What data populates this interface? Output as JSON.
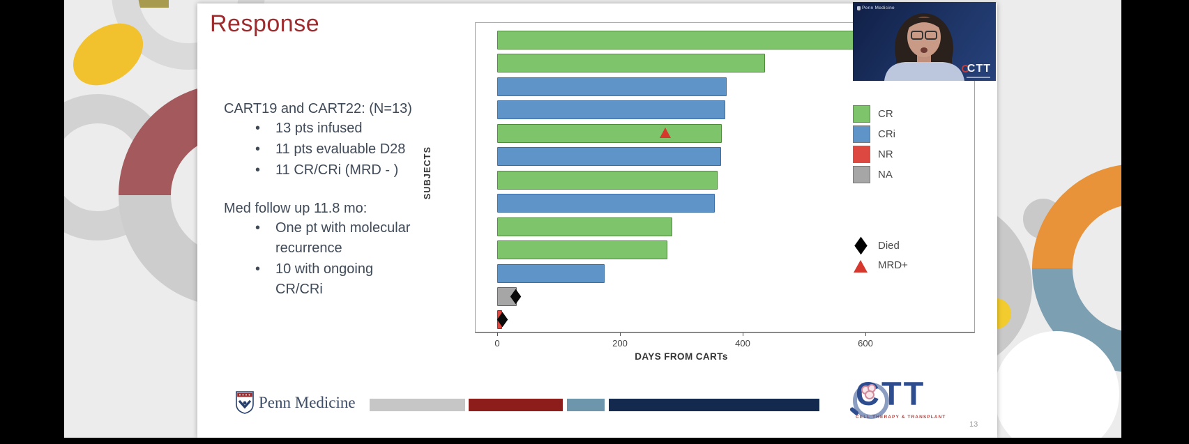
{
  "slide": {
    "title": "Response",
    "body": {
      "group1_header": "CART19 and CART22: (N=13)",
      "group1_bullets": [
        "13 pts infused",
        "11 pts evaluable D28",
        "11 CR/CRi (MRD - )"
      ],
      "group2_header": "Med follow up 11.8 mo:",
      "group2_bullets": [
        [
          "One pt with molecular",
          "recurrence"
        ],
        [
          "10 with ongoing",
          "CR/CRi"
        ]
      ],
      "bullet_glyph": "•"
    },
    "page_number": "13"
  },
  "chart_data": {
    "type": "bar",
    "orientation": "horizontal",
    "title": "",
    "xlabel": "DAYS FROM CARTs",
    "ylabel": "SUBJECTS",
    "x_ticks": [
      0,
      200,
      400,
      600
    ],
    "xlim": [
      0,
      780
    ],
    "grid": false,
    "legend_position": "right",
    "legend": [
      {
        "label": "CR",
        "color": "#7ec46b",
        "edge": "#4e8a3c"
      },
      {
        "label": "CRi",
        "color": "#5f94c9",
        "edge": "#3c6ea6"
      },
      {
        "label": "NR",
        "color": "#dd4840",
        "edge": "#9e2a20"
      },
      {
        "label": "NA",
        "color": "#a6a6a6",
        "edge": "#666666"
      }
    ],
    "marker_legend": [
      {
        "label": "Died",
        "marker": "diamond",
        "color": "#000000"
      },
      {
        "label": "MRD+",
        "marker": "triangle",
        "color": "#d6382e"
      }
    ],
    "bars": [
      {
        "subject": 1,
        "response": "CR",
        "days": 660,
        "occluded_by_webcam": true
      },
      {
        "subject": 2,
        "response": "CR",
        "days": 436
      },
      {
        "subject": 3,
        "response": "CRi",
        "days": 374
      },
      {
        "subject": 4,
        "response": "CRi",
        "days": 371
      },
      {
        "subject": 5,
        "response": "CR",
        "days": 366,
        "markers": [
          {
            "type": "triangle",
            "day": 274
          }
        ]
      },
      {
        "subject": 6,
        "response": "CRi",
        "days": 365
      },
      {
        "subject": 7,
        "response": "CR",
        "days": 359
      },
      {
        "subject": 8,
        "response": "CRi",
        "days": 355
      },
      {
        "subject": 9,
        "response": "CR",
        "days": 285
      },
      {
        "subject": 10,
        "response": "CR",
        "days": 277
      },
      {
        "subject": 11,
        "response": "CRi",
        "days": 175
      },
      {
        "subject": 12,
        "response": "NA",
        "days": 32,
        "markers": [
          {
            "type": "diamond",
            "day": 30
          }
        ]
      },
      {
        "subject": 13,
        "response": "NR",
        "days": 8,
        "markers": [
          {
            "type": "diamond",
            "day": 8
          }
        ]
      }
    ]
  },
  "footer": {
    "penn_logo_text": "Penn Medicine",
    "ctt_logo_text": "CTT",
    "ctt_logo_subtext": "CELL THERAPY & TRANSPLANT",
    "brand_bar_colors": [
      "#c6c6c6",
      "#8d1d1b",
      "#6d95ac",
      "#132a4e"
    ]
  },
  "webcam": {
    "watermark": "Penn Medicine",
    "badge": "CTT"
  },
  "colors": {
    "slide_title": "#9e2b2e",
    "body_text": "#3f4a58",
    "stage_background": "#ececec",
    "letterbox": "#000000"
  }
}
